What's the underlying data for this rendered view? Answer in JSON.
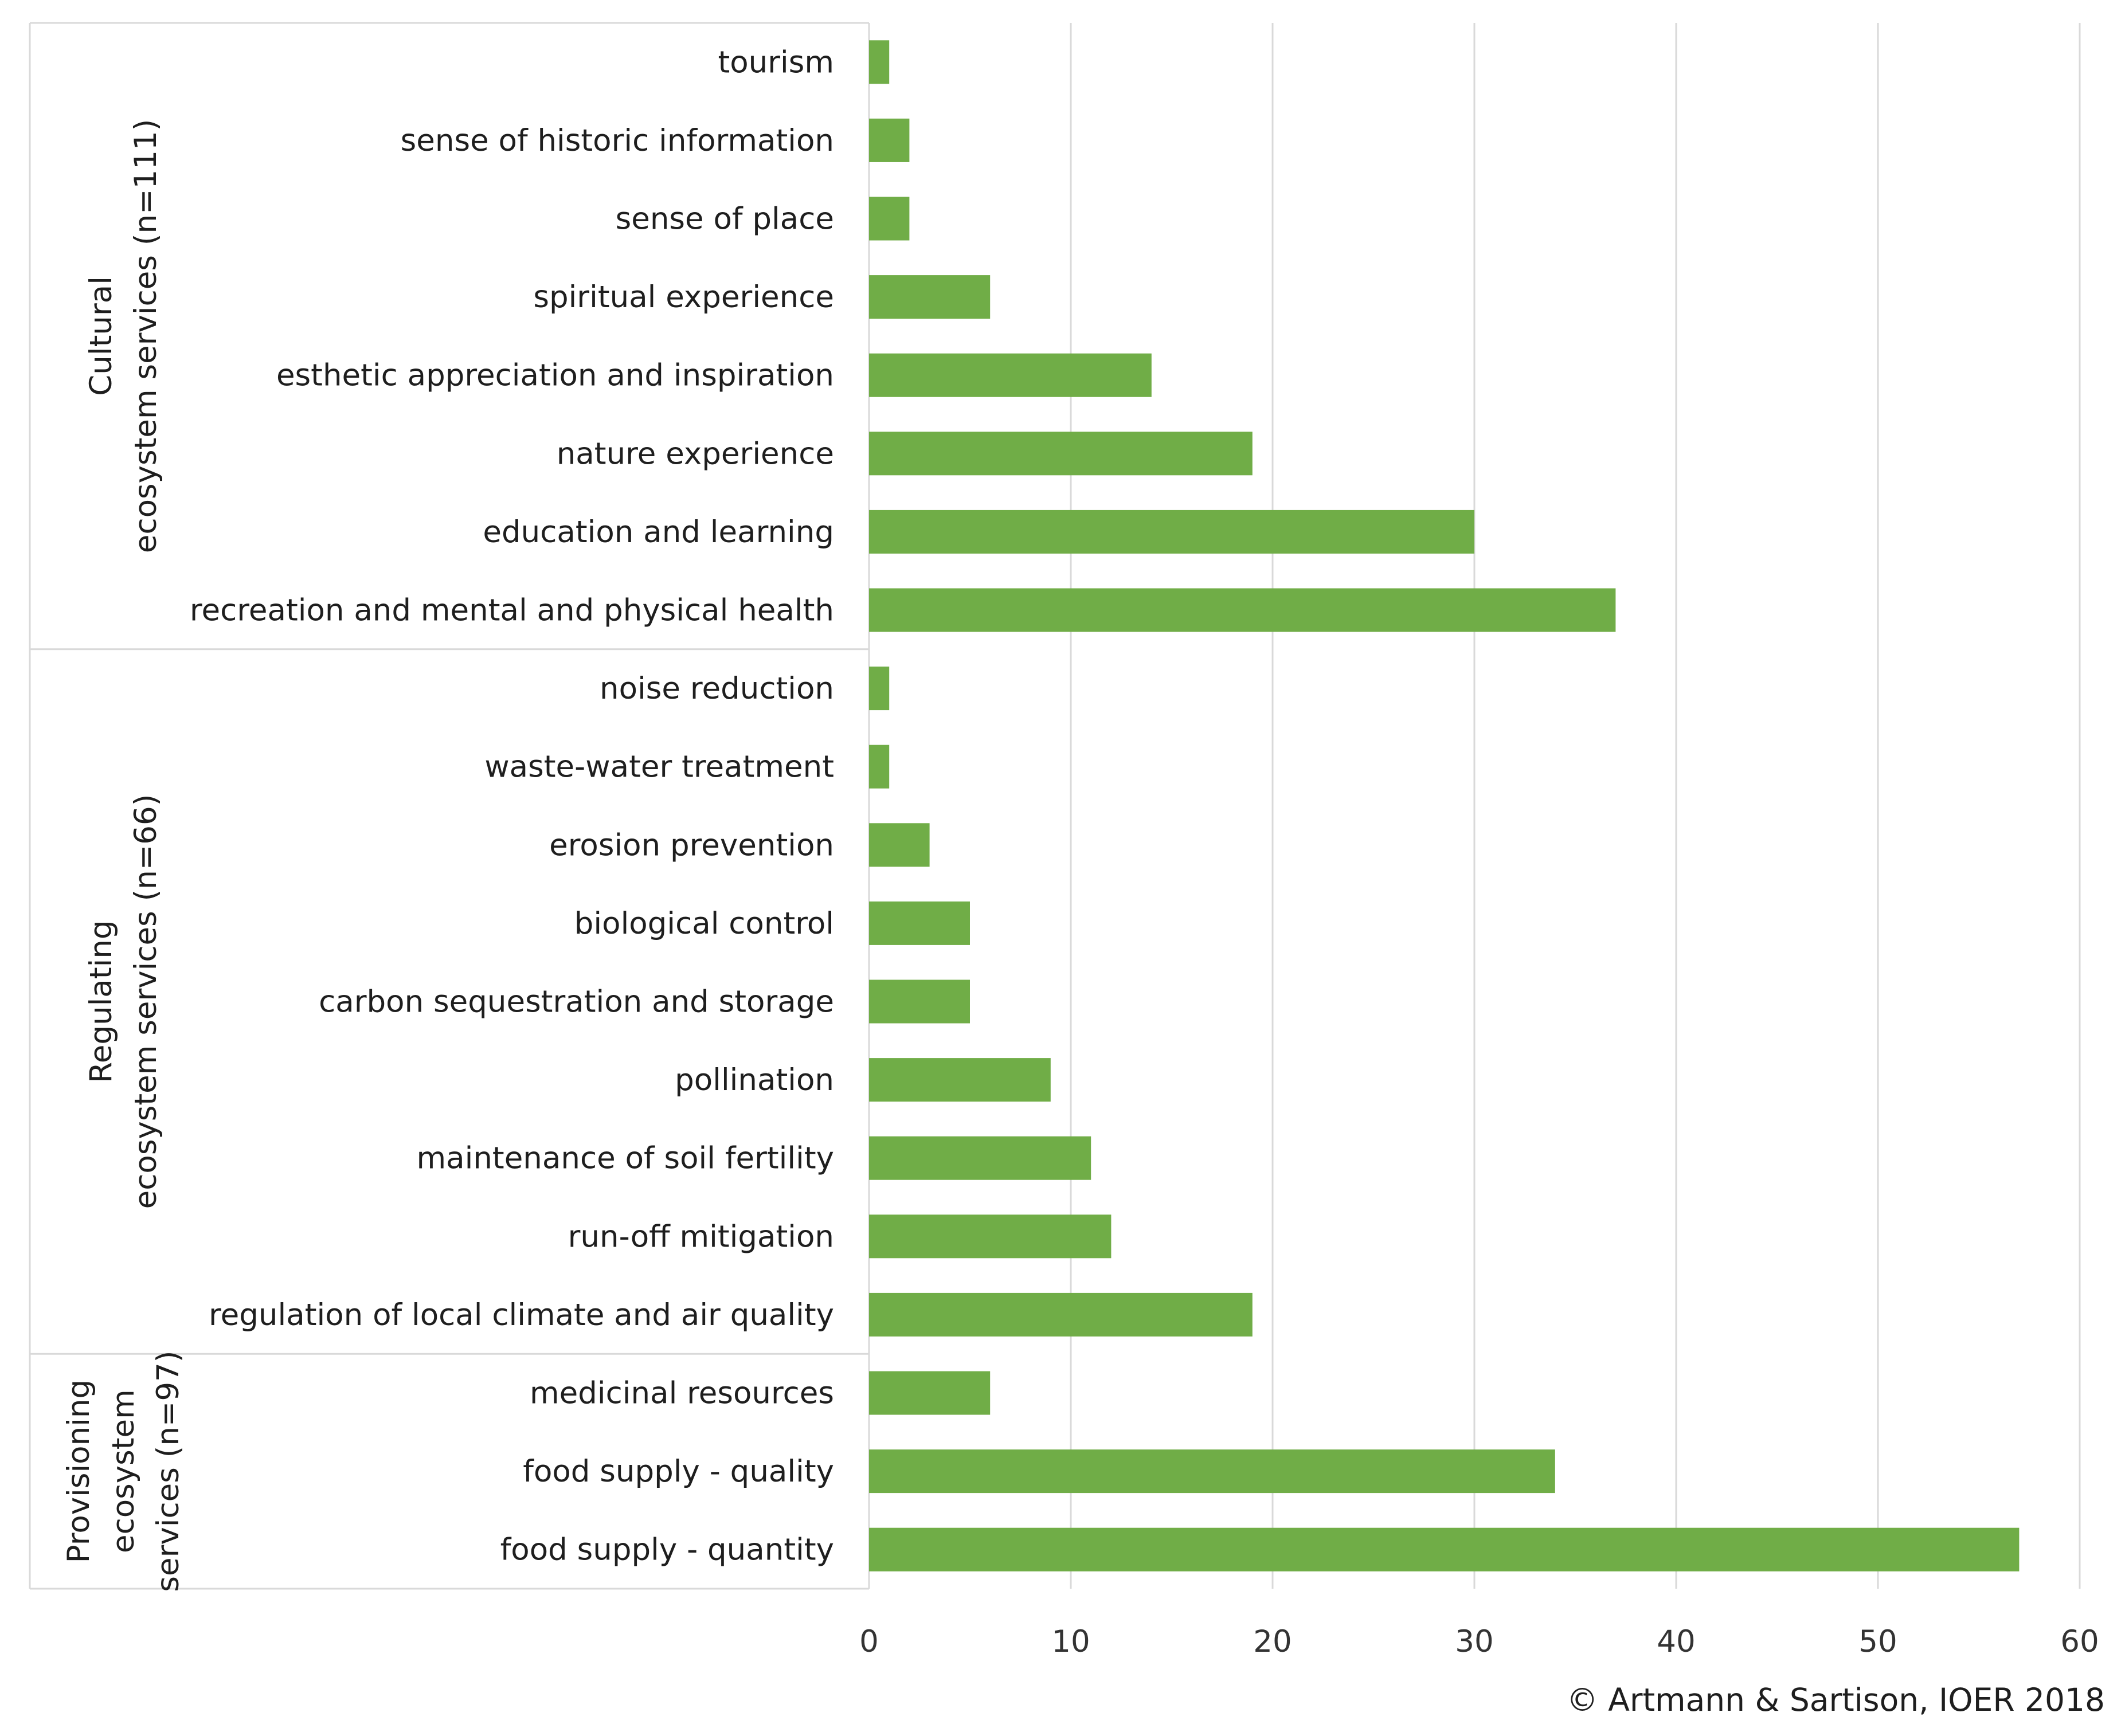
{
  "chart_data": {
    "type": "bar",
    "orientation": "horizontal",
    "groups": [
      {
        "title_lines": [
          "Cultural",
          "ecosystem services (n=111)"
        ],
        "categories": [
          "tourism",
          "sense of historic information",
          "sense of place",
          "spiritual experience",
          "esthetic appreciation and inspiration",
          "nature experience",
          "education and learning",
          "recreation and mental and physical health"
        ],
        "values": [
          1,
          2,
          2,
          6,
          14,
          19,
          30,
          37
        ]
      },
      {
        "title_lines": [
          "Regulating",
          "ecosystem services (n=66)"
        ],
        "categories": [
          "noise reduction",
          "waste-water treatment",
          "erosion prevention",
          "biological control",
          "carbon sequestration and storage",
          "pollination",
          "maintenance of soil fertility",
          "run-off mitigation",
          "regulation of local climate and air quality"
        ],
        "values": [
          1,
          1,
          3,
          5,
          5,
          9,
          11,
          12,
          19
        ]
      },
      {
        "title_lines": [
          "Provisioning",
          "ecosystem",
          "services  (n=97)"
        ],
        "categories": [
          "medicinal resources",
          "food supply - quality",
          "food supply - quantity"
        ],
        "values": [
          6,
          34,
          57
        ]
      }
    ],
    "xlim": [
      0,
      60
    ],
    "xticks": [
      0,
      10,
      20,
      30,
      40,
      50,
      60
    ],
    "grid": true,
    "bar_color": "#70ad47",
    "grid_color": "#d9d9d9",
    "credit": "© Artmann & Sartison, IOER 2018"
  }
}
